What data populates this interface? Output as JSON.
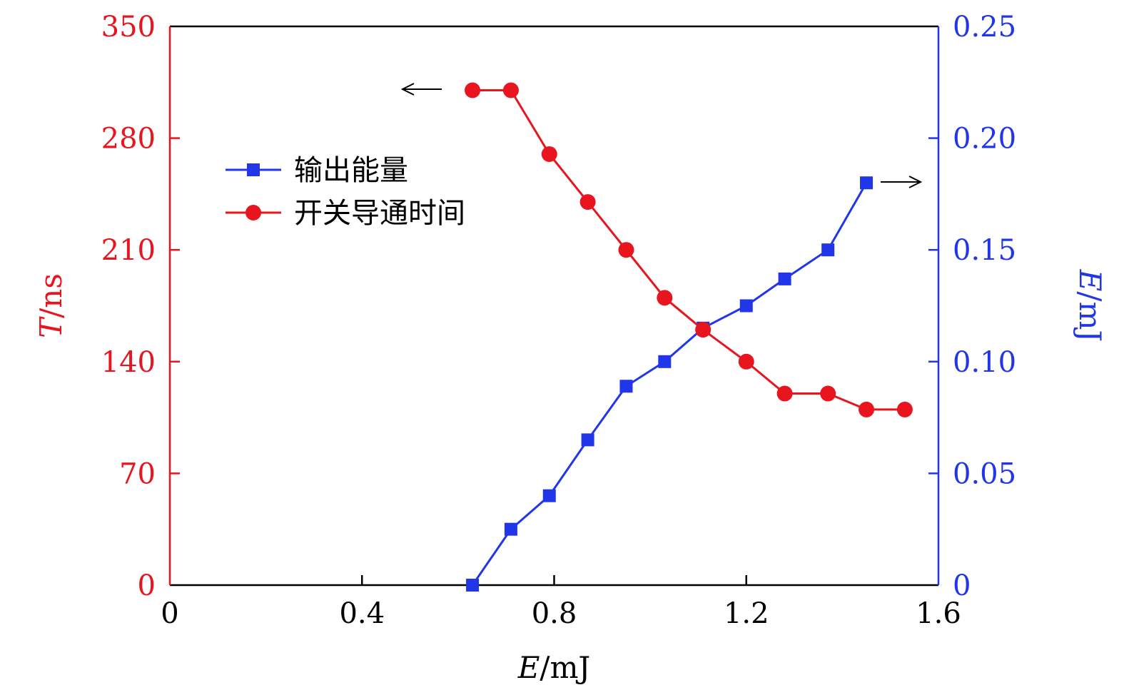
{
  "chart_data": {
    "type": "line",
    "colors": {
      "left_axis": "#e8141e",
      "right_axis": "#2036e8",
      "frame": "#000000"
    },
    "x_axis": {
      "label_italic": "E",
      "label_rest": "/mJ",
      "range": [
        0,
        1.6
      ],
      "ticks": [
        0,
        0.4,
        0.8,
        1.2,
        1.6
      ],
      "tick_labels": [
        "0",
        "0.4",
        "0.8",
        "1.2",
        "1.6"
      ]
    },
    "y_left": {
      "label_italic": "T",
      "label_rest": "/ns",
      "range": [
        0,
        350
      ],
      "ticks": [
        0,
        70,
        140,
        210,
        280,
        350
      ],
      "tick_labels": [
        "0",
        "70",
        "140",
        "210",
        "280",
        "350"
      ]
    },
    "y_right": {
      "label_italic": "E",
      "label_rest": "/mJ",
      "range": [
        0,
        0.25
      ],
      "ticks": [
        0,
        0.05,
        0.1,
        0.15,
        0.2,
        0.25
      ],
      "tick_labels": [
        "0",
        "0.05",
        "0.10",
        "0.15",
        "0.20",
        "0.25"
      ]
    },
    "legend_position": "upper-left",
    "series": [
      {
        "name": "输出能量",
        "axis": "right",
        "marker": "square",
        "color": "#2036e8",
        "x": [
          0.63,
          0.71,
          0.79,
          0.87,
          0.95,
          1.03,
          1.11,
          1.2,
          1.28,
          1.37,
          1.45
        ],
        "values": [
          0.0,
          0.025,
          0.04,
          0.065,
          0.089,
          0.1,
          0.115,
          0.125,
          0.137,
          0.15,
          0.18
        ]
      },
      {
        "name": "开关导通时间",
        "axis": "left",
        "marker": "circle",
        "color": "#e8141e",
        "x": [
          0.63,
          0.71,
          0.79,
          0.87,
          0.95,
          1.03,
          1.11,
          1.2,
          1.28,
          1.37,
          1.45,
          1.53
        ],
        "values": [
          310,
          310,
          270,
          240,
          210,
          180,
          160,
          140,
          120,
          120,
          110,
          110
        ]
      }
    ],
    "annotations": [
      {
        "type": "arrow",
        "direction": "left",
        "refers_to": "left axis"
      },
      {
        "type": "arrow",
        "direction": "right",
        "refers_to": "right axis"
      }
    ]
  }
}
